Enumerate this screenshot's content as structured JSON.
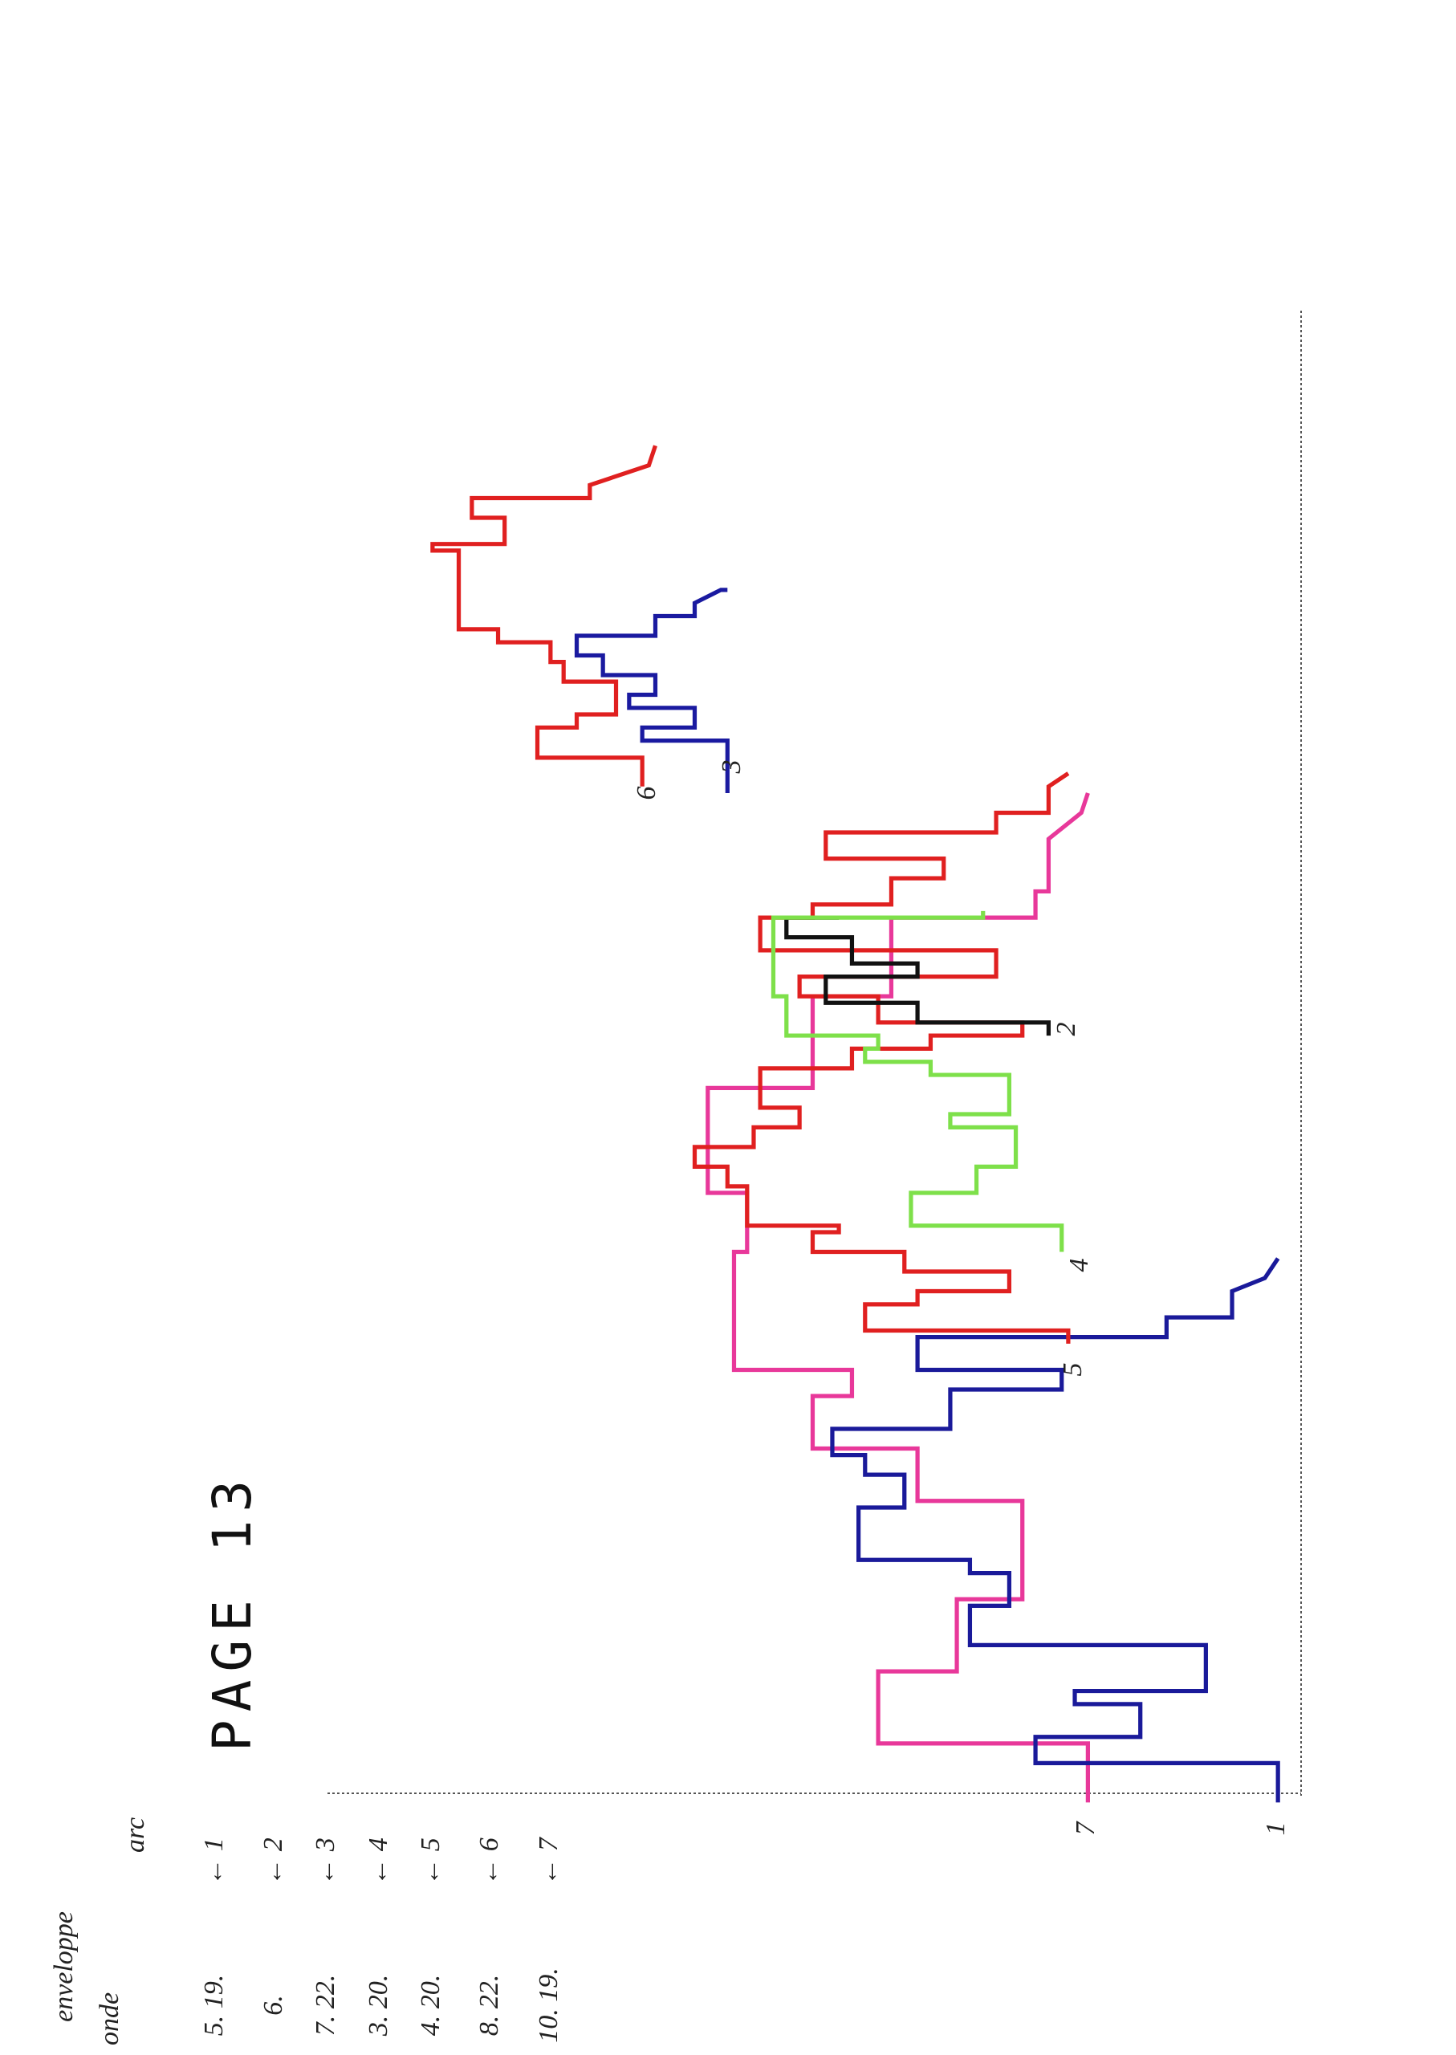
{
  "header": {
    "title": "PAGE 13"
  },
  "legend": {
    "onde": "onde",
    "enveloppe": "enveloppe",
    "arc": "arc",
    "rows": [
      {
        "wave": "5. 19.",
        "arc": "← 1"
      },
      {
        "wave": "6.",
        "arc": "← 2"
      },
      {
        "wave": "7. 22.",
        "arc": "← 3"
      },
      {
        "wave": "3. 20.",
        "arc": "← 4"
      },
      {
        "wave": "4. 20.",
        "arc": "← 5"
      },
      {
        "wave": "8. 22.",
        "arc": "← 6"
      },
      {
        "wave": "10. 19.",
        "arc": "← 7"
      }
    ]
  },
  "plot": {
    "labels": [
      "6",
      "3",
      "2",
      "4",
      "5",
      "7",
      "1"
    ]
  }
}
